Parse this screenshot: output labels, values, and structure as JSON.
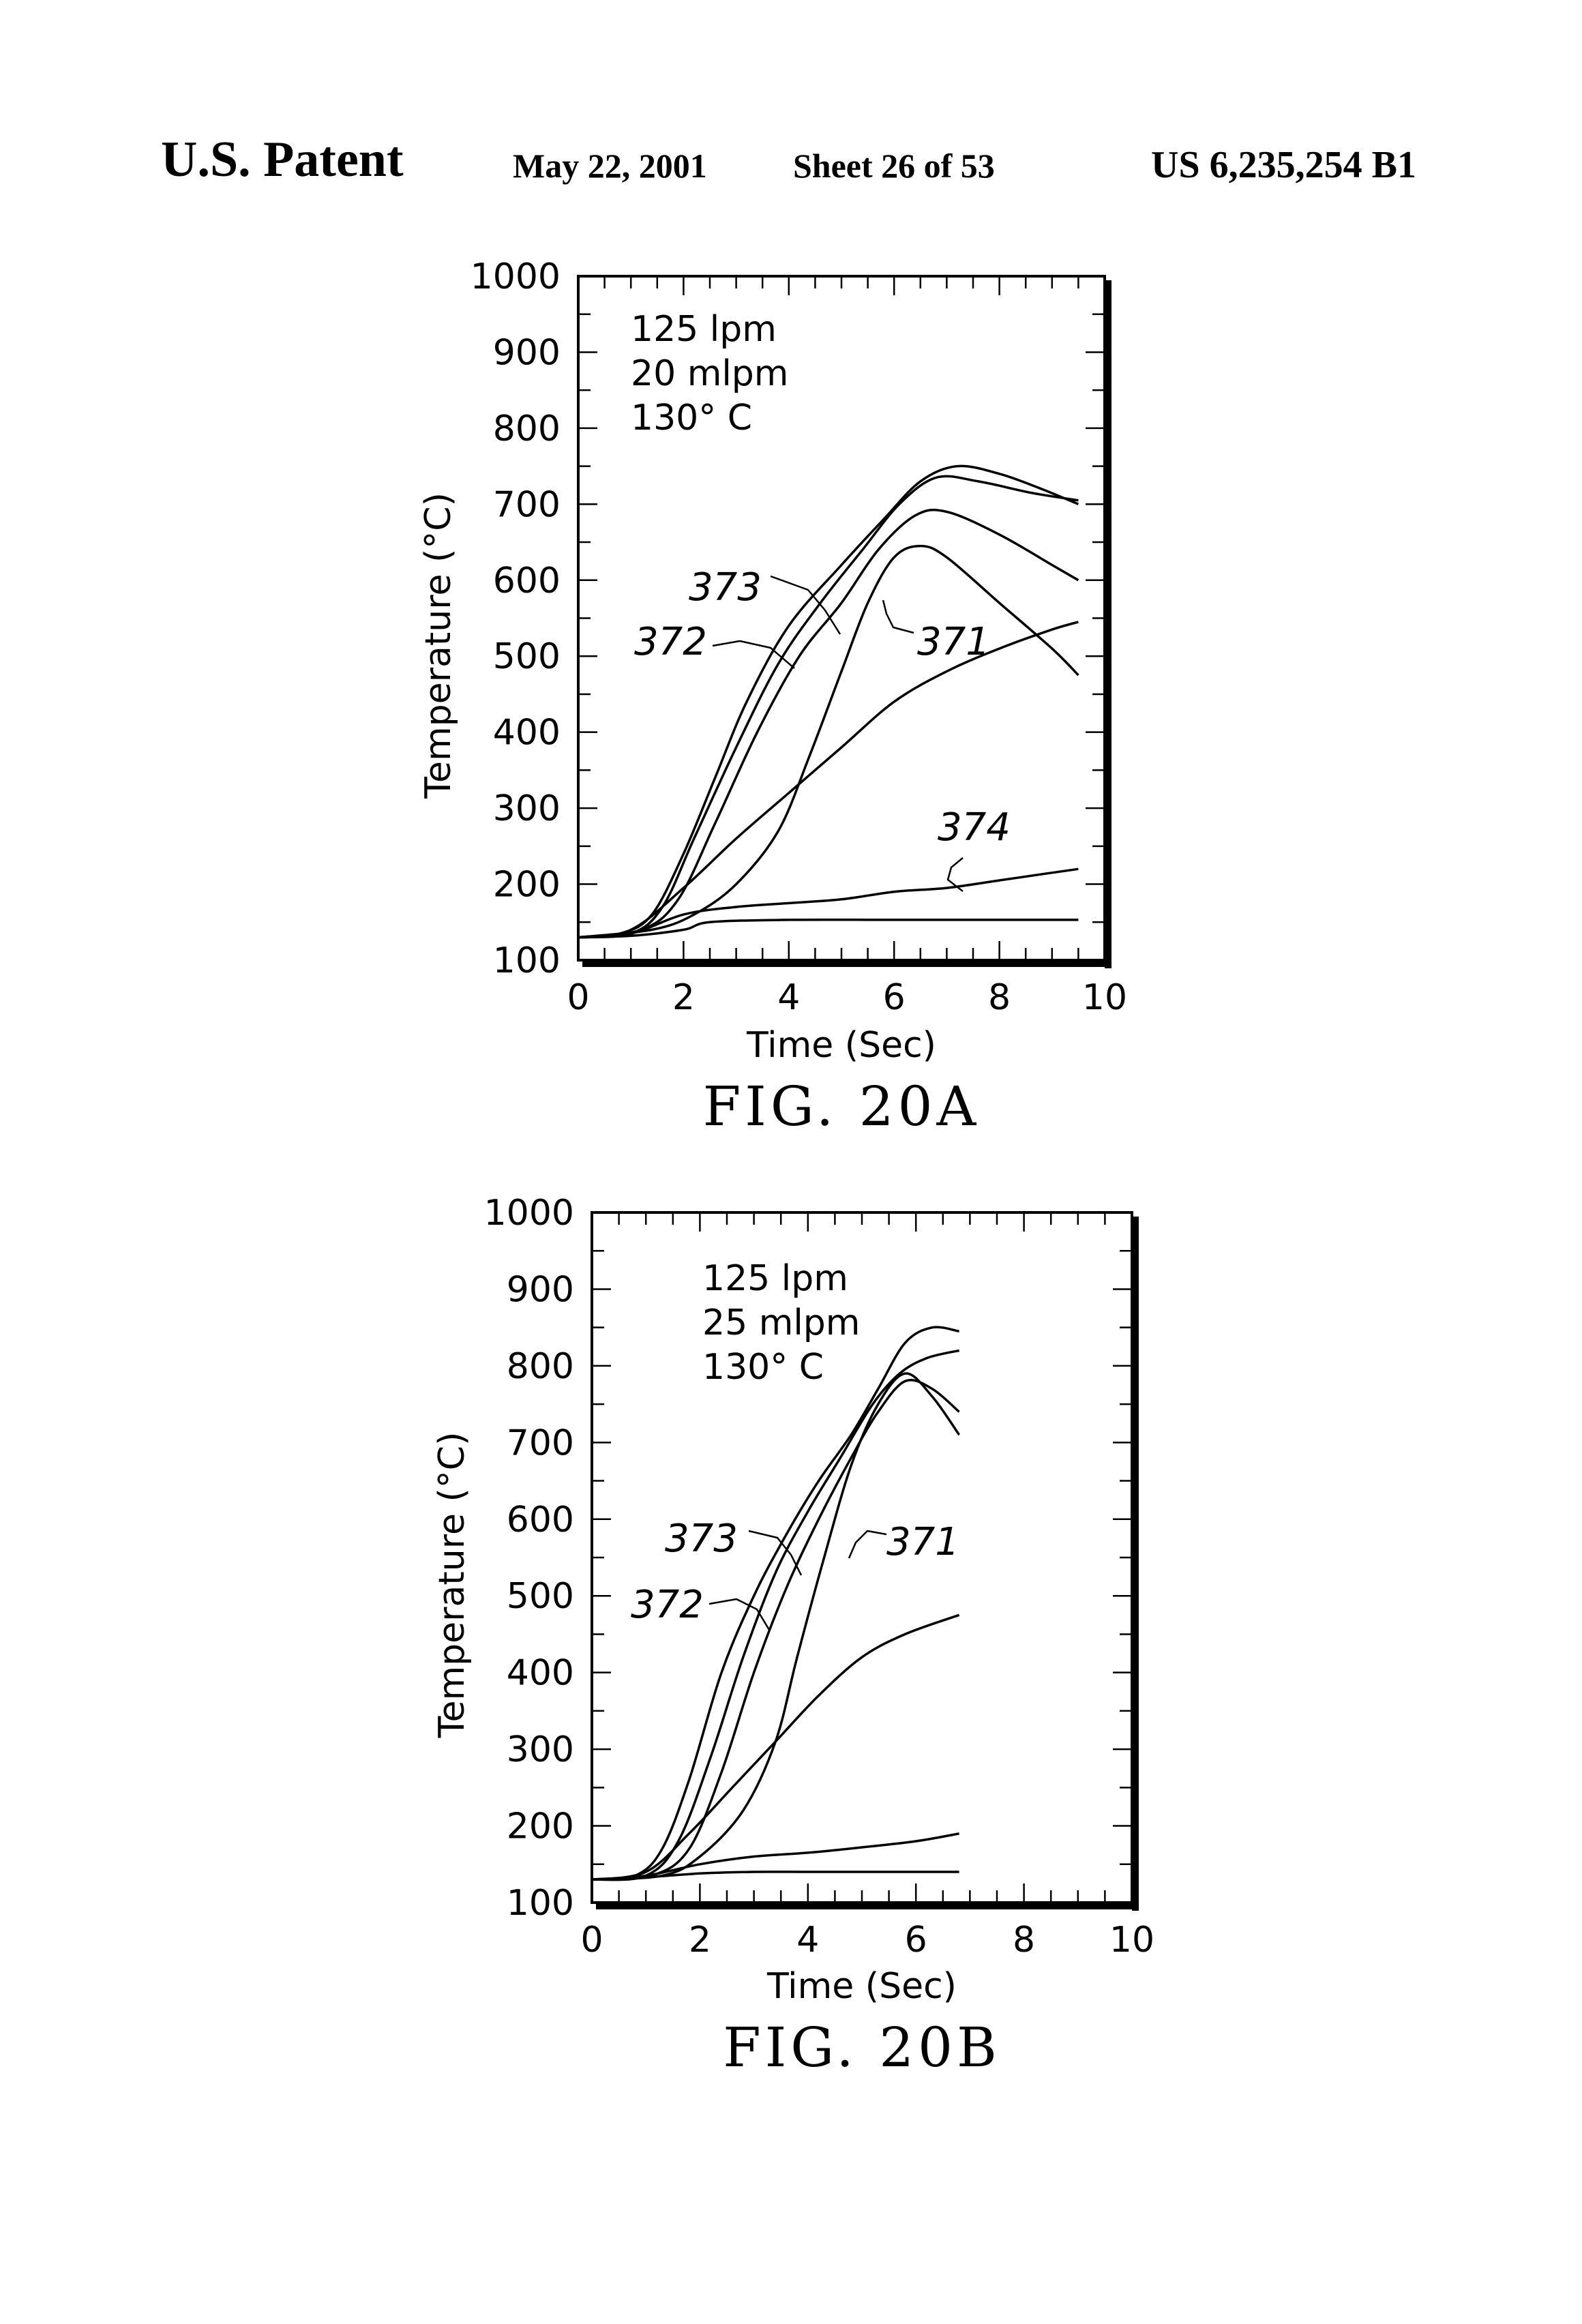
{
  "header": {
    "left": "U.S. Patent",
    "date": "May 22, 2001",
    "sheet": "Sheet 26 of 53",
    "number": "US 6,235,254 B1"
  },
  "chart_data": [
    {
      "type": "line",
      "caption": "FIG. 20A",
      "xlabel": "Time (Sec)",
      "ylabel": "Temperature (°C)",
      "xlim": [
        0,
        10
      ],
      "ylim": [
        100,
        1000
      ],
      "x_ticks": [
        "0",
        "2",
        "4",
        "6",
        "8",
        "10"
      ],
      "y_ticks": [
        "100",
        "200",
        "300",
        "400",
        "500",
        "600",
        "700",
        "800",
        "900",
        "1000"
      ],
      "annotation": [
        "125 lpm",
        "20 mlpm",
        "130° C"
      ],
      "series": [
        {
          "name": "",
          "points": [
            [
              0,
              130
            ],
            [
              0.8,
              135
            ],
            [
              1.4,
              160
            ],
            [
              2,
              240
            ],
            [
              2.6,
              340
            ],
            [
              3.2,
              440
            ],
            [
              4,
              540
            ],
            [
              5,
              620
            ],
            [
              5.8,
              680
            ],
            [
              6.5,
              730
            ],
            [
              7.2,
              750
            ],
            [
              8,
              740
            ],
            [
              8.8,
              720
            ],
            [
              9.5,
              700
            ]
          ]
        },
        {
          "name": "",
          "points": [
            [
              0,
              130
            ],
            [
              1,
              135
            ],
            [
              1.6,
              170
            ],
            [
              2.2,
              260
            ],
            [
              3,
              380
            ],
            [
              3.8,
              490
            ],
            [
              4.6,
              570
            ],
            [
              5.4,
              640
            ],
            [
              6.1,
              700
            ],
            [
              6.8,
              735
            ],
            [
              7.6,
              730
            ],
            [
              8.6,
              715
            ],
            [
              9.5,
              705
            ]
          ]
        },
        {
          "name": "",
          "points": [
            [
              0,
              130
            ],
            [
              1.2,
              140
            ],
            [
              1.9,
              180
            ],
            [
              2.6,
              280
            ],
            [
              3.4,
              400
            ],
            [
              4.2,
              500
            ],
            [
              5,
              570
            ],
            [
              5.7,
              640
            ],
            [
              6.4,
              685
            ],
            [
              7,
              690
            ],
            [
              8,
              660
            ],
            [
              9,
              620
            ],
            [
              9.5,
              600
            ]
          ]
        },
        {
          "name": "",
          "points": [
            [
              0,
              130
            ],
            [
              1.4,
              140
            ],
            [
              2.2,
              160
            ],
            [
              3,
              200
            ],
            [
              3.8,
              270
            ],
            [
              4.4,
              370
            ],
            [
              5,
              480
            ],
            [
              5.5,
              570
            ],
            [
              6,
              630
            ],
            [
              6.5,
              645
            ],
            [
              7,
              630
            ],
            [
              8,
              570
            ],
            [
              9,
              510
            ],
            [
              9.5,
              475
            ]
          ]
        },
        {
          "name": "",
          "points": [
            [
              0,
              130
            ],
            [
              1,
              140
            ],
            [
              2,
              195
            ],
            [
              3,
              260
            ],
            [
              4,
              320
            ],
            [
              5,
              380
            ],
            [
              6,
              440
            ],
            [
              7,
              480
            ],
            [
              8,
              510
            ],
            [
              9,
              535
            ],
            [
              9.5,
              545
            ]
          ]
        },
        {
          "name": "",
          "points": [
            [
              0,
              130
            ],
            [
              1,
              135
            ],
            [
              2,
              160
            ],
            [
              3,
              170
            ],
            [
              4,
              175
            ],
            [
              5,
              180
            ],
            [
              6,
              190
            ],
            [
              7,
              195
            ],
            [
              8,
              205
            ],
            [
              9,
              215
            ],
            [
              9.5,
              220
            ]
          ]
        },
        {
          "name": "",
          "points": [
            [
              0,
              130
            ],
            [
              1,
              132
            ],
            [
              2,
              140
            ],
            [
              2.5,
              150
            ],
            [
              4,
              153
            ],
            [
              6,
              153
            ],
            [
              8,
              153
            ],
            [
              9.5,
              153
            ]
          ]
        }
      ],
      "line_labels": [
        "371",
        "372",
        "373",
        "374"
      ]
    },
    {
      "type": "line",
      "caption": "FIG. 20B",
      "xlabel": "Time (Sec)",
      "ylabel": "Temperature (°C)",
      "xlim": [
        0,
        10
      ],
      "ylim": [
        100,
        1000
      ],
      "x_ticks": [
        "0",
        "2",
        "4",
        "6",
        "8",
        "10"
      ],
      "y_ticks": [
        "100",
        "200",
        "300",
        "400",
        "500",
        "600",
        "700",
        "800",
        "900",
        "1000"
      ],
      "annotation": [
        "125 lpm",
        "25 mlpm",
        "130° C"
      ],
      "series": [
        {
          "name": "",
          "points": [
            [
              0,
              130
            ],
            [
              0.8,
              135
            ],
            [
              1.3,
              170
            ],
            [
              1.8,
              260
            ],
            [
              2.4,
              400
            ],
            [
              3,
              500
            ],
            [
              3.6,
              580
            ],
            [
              4.2,
              650
            ],
            [
              4.8,
              710
            ],
            [
              5.3,
              770
            ],
            [
              5.8,
              830
            ],
            [
              6.3,
              850
            ],
            [
              6.8,
              845
            ]
          ]
        },
        {
          "name": "",
          "points": [
            [
              0,
              130
            ],
            [
              1,
              135
            ],
            [
              1.6,
              180
            ],
            [
              2.2,
              290
            ],
            [
              2.8,
              420
            ],
            [
              3.4,
              530
            ],
            [
              4,
              610
            ],
            [
              4.6,
              680
            ],
            [
              5.2,
              750
            ],
            [
              5.7,
              790
            ],
            [
              6.2,
              810
            ],
            [
              6.8,
              820
            ]
          ]
        },
        {
          "name": "",
          "points": [
            [
              0,
              130
            ],
            [
              1.1,
              135
            ],
            [
              1.8,
              170
            ],
            [
              2.4,
              270
            ],
            [
              3,
              400
            ],
            [
              3.6,
              510
            ],
            [
              4.2,
              600
            ],
            [
              4.8,
              680
            ],
            [
              5.3,
              740
            ],
            [
              5.8,
              780
            ],
            [
              6.3,
              770
            ],
            [
              6.8,
              740
            ]
          ]
        },
        {
          "name": "",
          "points": [
            [
              0,
              130
            ],
            [
              1.3,
              135
            ],
            [
              2,
              160
            ],
            [
              2.8,
              220
            ],
            [
              3.4,
              310
            ],
            [
              3.8,
              420
            ],
            [
              4.3,
              550
            ],
            [
              4.8,
              670
            ],
            [
              5.3,
              750
            ],
            [
              5.8,
              790
            ],
            [
              6.3,
              760
            ],
            [
              6.8,
              710
            ]
          ]
        },
        {
          "name": "",
          "points": [
            [
              0,
              130
            ],
            [
              1,
              140
            ],
            [
              1.8,
              190
            ],
            [
              2.6,
              250
            ],
            [
              3.4,
              310
            ],
            [
              4.2,
              370
            ],
            [
              5,
              420
            ],
            [
              5.8,
              450
            ],
            [
              6.8,
              475
            ]
          ]
        },
        {
          "name": "",
          "points": [
            [
              0,
              130
            ],
            [
              1,
              135
            ],
            [
              2,
              150
            ],
            [
              3,
              160
            ],
            [
              4,
              165
            ],
            [
              5,
              172
            ],
            [
              6,
              180
            ],
            [
              6.8,
              190
            ]
          ]
        },
        {
          "name": "",
          "points": [
            [
              0,
              130
            ],
            [
              1,
              133
            ],
            [
              2,
              138
            ],
            [
              3,
              140
            ],
            [
              4,
              140
            ],
            [
              5,
              140
            ],
            [
              6,
              140
            ],
            [
              6.8,
              140
            ]
          ]
        }
      ],
      "line_labels": [
        "371",
        "372",
        "373"
      ]
    }
  ]
}
